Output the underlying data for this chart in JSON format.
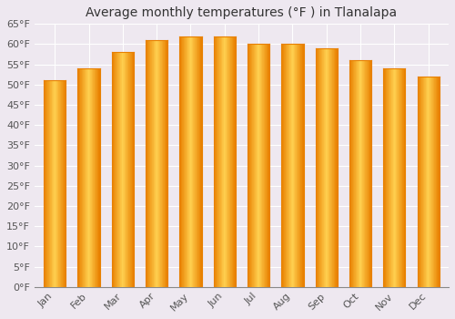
{
  "title": "Average monthly temperatures (°F ) in Tlanalapa",
  "months": [
    "Jan",
    "Feb",
    "Mar",
    "Apr",
    "May",
    "Jun",
    "Jul",
    "Aug",
    "Sep",
    "Oct",
    "Nov",
    "Dec"
  ],
  "values": [
    51,
    54,
    58,
    61,
    62,
    62,
    60,
    60,
    59,
    56,
    54,
    52
  ],
  "bar_color_center": "#FFD050",
  "bar_color_edge": "#E88000",
  "ylim": [
    0,
    65
  ],
  "ytick_step": 5,
  "background_color": "#EEE8F0",
  "grid_color": "#FFFFFF",
  "title_fontsize": 10,
  "tick_fontsize": 8,
  "bar_width": 0.65
}
